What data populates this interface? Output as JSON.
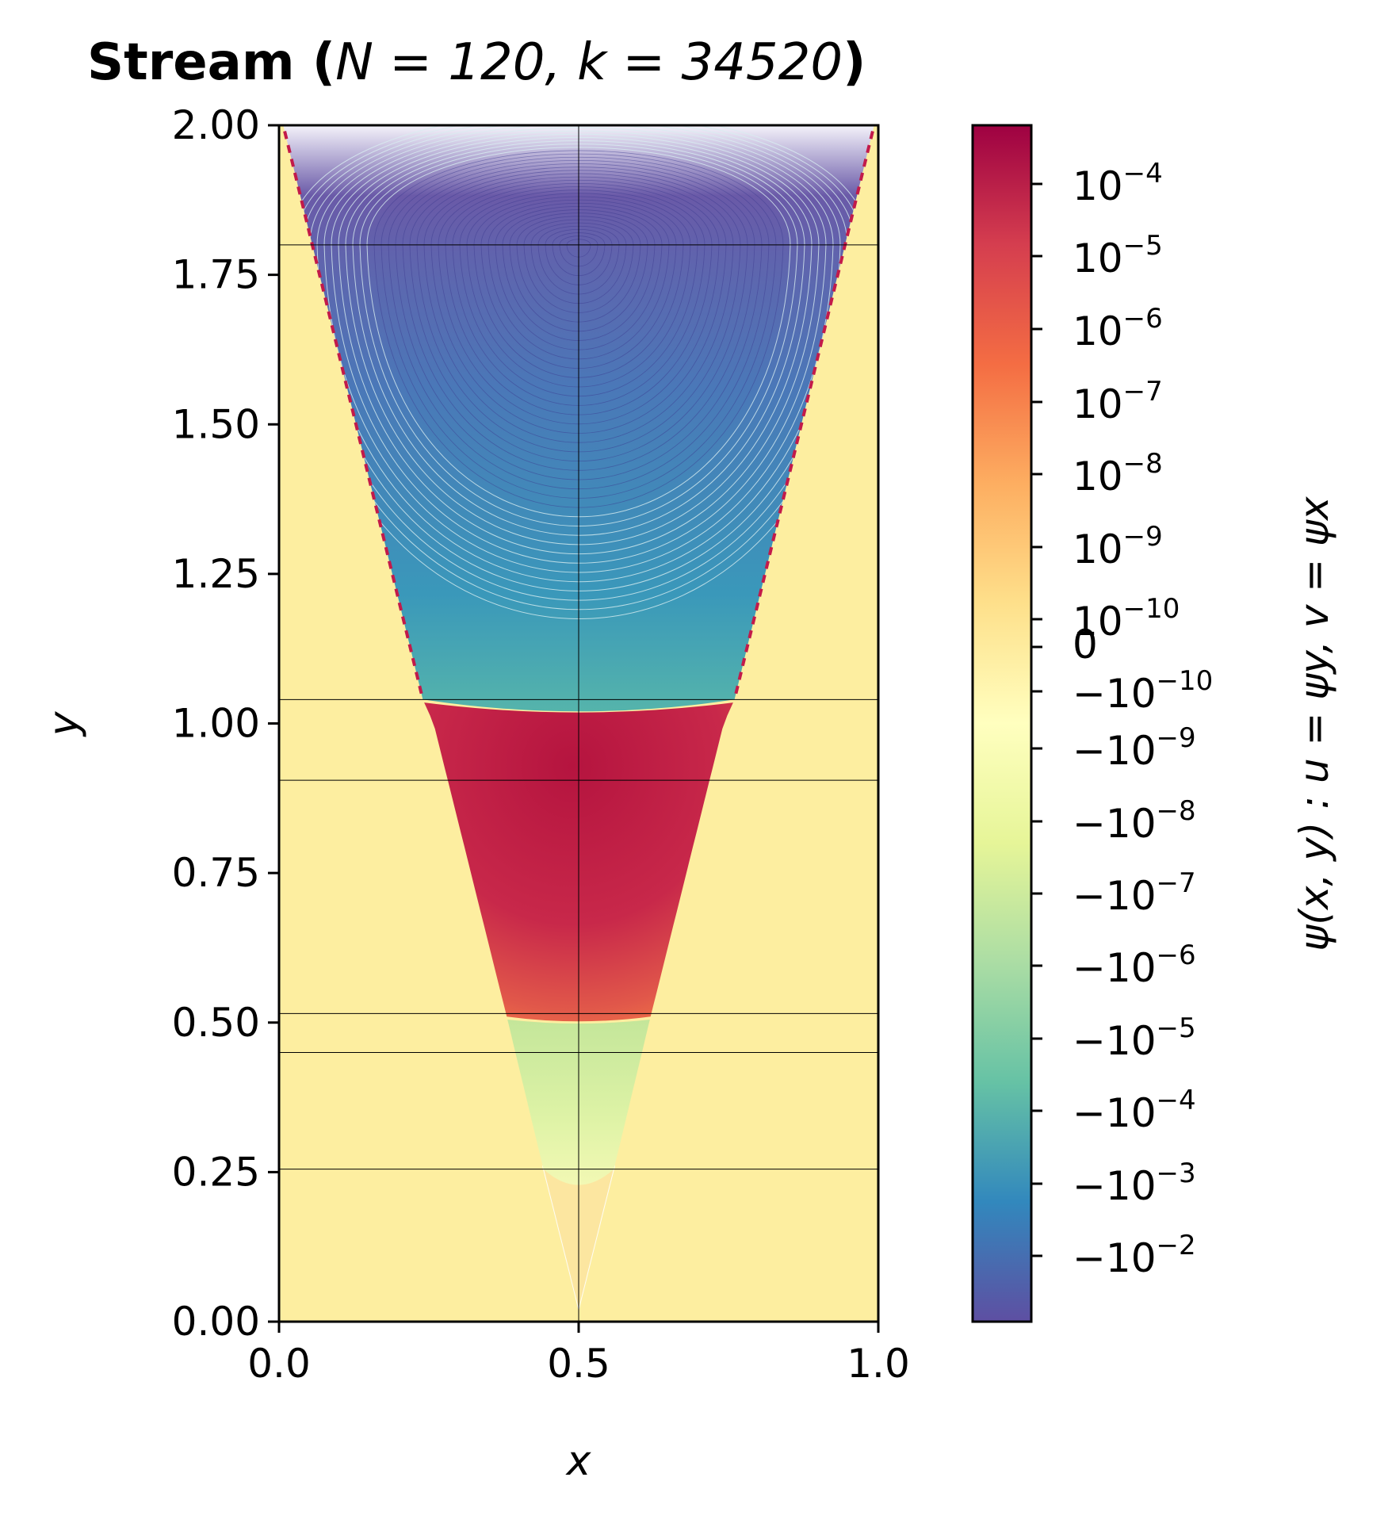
{
  "chart_data": {
    "type": "heatmap",
    "title_bold": "Stream (",
    "title_math": "N = 120, k = 34520",
    "title_close": ")",
    "xlabel": "x",
    "ylabel": "y",
    "xlim": [
      0.0,
      1.0
    ],
    "ylim": [
      0.0,
      2.0
    ],
    "x_ticks": [
      "0.0",
      "0.5",
      "1.0"
    ],
    "y_ticks": [
      "0.00",
      "0.25",
      "0.50",
      "0.75",
      "1.00",
      "1.25",
      "1.50",
      "1.75",
      "2.00"
    ],
    "colorbar_label": "ψ(x, y) : u = ψy, v = ψx",
    "colorbar_scale": "symlog",
    "colorbar_ticks": [
      {
        "base": "10",
        "exp": "−4"
      },
      {
        "base": "10",
        "exp": "−5"
      },
      {
        "base": "10",
        "exp": "−6"
      },
      {
        "base": "10",
        "exp": "−7"
      },
      {
        "base": "10",
        "exp": "−8"
      },
      {
        "base": "10",
        "exp": "−9"
      },
      {
        "base": "10",
        "exp": "−10"
      },
      {
        "base": "0",
        "exp": ""
      },
      {
        "base": "−10",
        "exp": "−10"
      },
      {
        "base": "−10",
        "exp": "−9"
      },
      {
        "base": "−10",
        "exp": "−8"
      },
      {
        "base": "−10",
        "exp": "−7"
      },
      {
        "base": "−10",
        "exp": "−6"
      },
      {
        "base": "−10",
        "exp": "−5"
      },
      {
        "base": "−10",
        "exp": "−4"
      },
      {
        "base": "−10",
        "exp": "−3"
      },
      {
        "base": "−10",
        "exp": "−2"
      }
    ],
    "colormap": "Spectral_r",
    "colors": {
      "background": "#fdeea0",
      "top_region": "#5e4fa2",
      "upper_mid": "#3288bd",
      "lower_top": "#66c2a5",
      "red_band": "#b8123e",
      "green_band": "#d4ee9a"
    },
    "reference_lines_y": [
      1.8,
      1.04,
      0.905,
      0.515,
      0.45,
      0.255
    ],
    "reference_line_x": 0.5,
    "domain_boundary": {
      "left": [
        [
          0.007,
          2.0
        ],
        [
          0.24,
          1.04
        ],
        [
          0.258,
          1.0
        ],
        [
          0.38,
          0.51
        ],
        [
          0.44,
          0.26
        ],
        [
          0.5,
          0.02
        ]
      ],
      "right": [
        [
          0.993,
          2.0
        ],
        [
          0.76,
          1.04
        ],
        [
          0.742,
          1.0
        ],
        [
          0.62,
          0.51
        ],
        [
          0.56,
          0.26
        ],
        [
          0.5,
          0.02
        ]
      ]
    },
    "grid": false
  }
}
